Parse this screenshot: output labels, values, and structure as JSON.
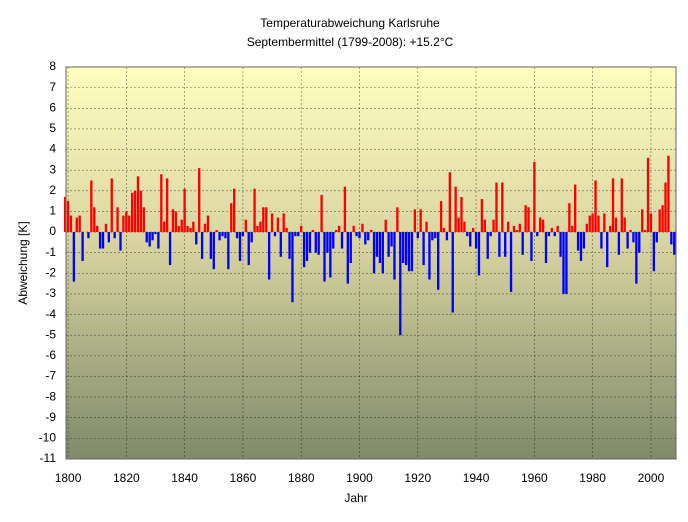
{
  "chart_data": {
    "type": "bar",
    "title": "Temperaturabweichung Karlsruhe",
    "subtitle": "Septembermittel (1799-2008): +15.2°C",
    "y_label": "Abweichung [K]",
    "x_label": "Jahr",
    "positive_color": "#ff0000",
    "negative_color": "#0000ff",
    "grid": true,
    "xlim": [
      1799.3,
      2008.6
    ],
    "ylim": [
      -11,
      8
    ],
    "xticks": [
      1800,
      1820,
      1840,
      1860,
      1880,
      1900,
      1920,
      1940,
      1960,
      1980,
      2000
    ],
    "yticks": [
      -11,
      -10,
      -9,
      -8,
      -7,
      -6,
      -5,
      -4,
      -3,
      -2,
      -1,
      0,
      1,
      2,
      3,
      4,
      5,
      6,
      7,
      8
    ],
    "x": [
      1799,
      1800,
      1801,
      1802,
      1803,
      1804,
      1805,
      1806,
      1807,
      1808,
      1809,
      1810,
      1811,
      1812,
      1813,
      1814,
      1815,
      1816,
      1817,
      1818,
      1819,
      1820,
      1821,
      1822,
      1823,
      1824,
      1825,
      1826,
      1827,
      1828,
      1829,
      1830,
      1831,
      1832,
      1833,
      1834,
      1835,
      1836,
      1837,
      1838,
      1839,
      1840,
      1841,
      1842,
      1843,
      1844,
      1845,
      1846,
      1847,
      1848,
      1849,
      1850,
      1851,
      1852,
      1853,
      1854,
      1855,
      1856,
      1857,
      1858,
      1859,
      1860,
      1861,
      1862,
      1863,
      1864,
      1865,
      1866,
      1867,
      1868,
      1869,
      1870,
      1871,
      1872,
      1873,
      1874,
      1875,
      1876,
      1877,
      1878,
      1879,
      1880,
      1881,
      1882,
      1883,
      1884,
      1885,
      1886,
      1887,
      1888,
      1889,
      1890,
      1891,
      1892,
      1893,
      1894,
      1895,
      1896,
      1897,
      1898,
      1899,
      1900,
      1901,
      1902,
      1903,
      1904,
      1905,
      1906,
      1907,
      1908,
      1909,
      1910,
      1911,
      1912,
      1913,
      1914,
      1915,
      1916,
      1917,
      1918,
      1919,
      1920,
      1921,
      1922,
      1923,
      1924,
      1925,
      1926,
      1927,
      1928,
      1929,
      1930,
      1931,
      1932,
      1933,
      1934,
      1935,
      1936,
      1937,
      1938,
      1939,
      1940,
      1941,
      1942,
      1943,
      1944,
      1945,
      1946,
      1947,
      1948,
      1949,
      1950,
      1951,
      1952,
      1953,
      1954,
      1955,
      1956,
      1957,
      1958,
      1959,
      1960,
      1961,
      1962,
      1963,
      1964,
      1965,
      1966,
      1967,
      1968,
      1969,
      1970,
      1971,
      1972,
      1973,
      1974,
      1975,
      1976,
      1977,
      1978,
      1979,
      1980,
      1981,
      1982,
      1983,
      1984,
      1985,
      1986,
      1987,
      1988,
      1989,
      1990,
      1991,
      1992,
      1993,
      1994,
      1995,
      1996,
      1997,
      1998,
      1999,
      2000,
      2001,
      2002,
      2003,
      2004,
      2005,
      2006,
      2007,
      2008
    ],
    "values": [
      1.7,
      1.5,
      0.8,
      -2.4,
      0.7,
      0.8,
      -1.4,
      0,
      -0.3,
      2.5,
      1.2,
      0.3,
      -0.8,
      -0.8,
      0.4,
      -0.5,
      2.6,
      -0.3,
      1.2,
      -0.9,
      0.8,
      1.0,
      0.8,
      1.9,
      2.0,
      2.7,
      2.0,
      1.2,
      -0.5,
      -0.7,
      -0.4,
      -0.1,
      -0.8,
      2.8,
      0.5,
      2.6,
      -1.6,
      1.1,
      1.0,
      0.3,
      0.6,
      2.1,
      0.3,
      0.2,
      0.5,
      -0.6,
      3.1,
      -1.3,
      0.4,
      0.8,
      -1.3,
      -1.8,
      0.1,
      -0.4,
      -0.2,
      -0.3,
      -1.8,
      1.4,
      2.1,
      -0.3,
      -1.4,
      -0.2,
      0.6,
      -1.6,
      -0.5,
      2.1,
      0.3,
      0.5,
      1.2,
      1.2,
      -2.3,
      0.9,
      -0.2,
      0.7,
      -1.2,
      0.9,
      0.2,
      -1.3,
      -3.4,
      -0.2,
      -0.2,
      0.3,
      -1.7,
      -1.4,
      -1.0,
      0.1,
      -1.0,
      -1.1,
      1.8,
      -2.4,
      -1.0,
      -2.2,
      -0.8,
      0.1,
      0.3,
      -0.8,
      2.2,
      -2.5,
      -1.5,
      0.3,
      -0.2,
      -0.3,
      0.4,
      -0.6,
      -0.4,
      0.1,
      -2.0,
      -1.2,
      -1.5,
      -2.0,
      0.6,
      -1.2,
      -0.7,
      -2.3,
      1.2,
      -5.0,
      -1.5,
      -1.6,
      -1.9,
      -1.9,
      1.1,
      -0.3,
      1.1,
      -1.6,
      0.5,
      -2.3,
      -0.4,
      -0.3,
      -2.8,
      1.5,
      0.2,
      -0.4,
      2.9,
      -3.9,
      2.2,
      0.7,
      1.7,
      0.5,
      -0.2,
      -0.7,
      0.2,
      -0.8,
      -2.1,
      1.6,
      0.6,
      -1.3,
      -0.2,
      0.6,
      2.4,
      -1.2,
      2.4,
      -1.2,
      0.5,
      -2.9,
      0.3,
      0.1,
      0.4,
      -1.1,
      1.3,
      1.2,
      -1.4,
      3.4,
      -0.2,
      0.7,
      0.6,
      -1.5,
      -0.2,
      0.2,
      -0.2,
      0.3,
      -1.2,
      -3.0,
      -3.0,
      1.4,
      0.3,
      2.3,
      -0.9,
      -1.4,
      -0.8,
      0.4,
      0.8,
      0.9,
      2.5,
      0.8,
      -0.8,
      0.9,
      -1.7,
      0.3,
      2.6,
      0.7,
      -1.1,
      2.6,
      0.7,
      -0.8,
      0.1,
      -0.5,
      -2.5,
      -1.0,
      1.1,
      0.1,
      3.6,
      0.9,
      -1.9,
      -0.5,
      1.1,
      1.3,
      2.4,
      3.7,
      -0.6,
      -1.1
    ]
  }
}
